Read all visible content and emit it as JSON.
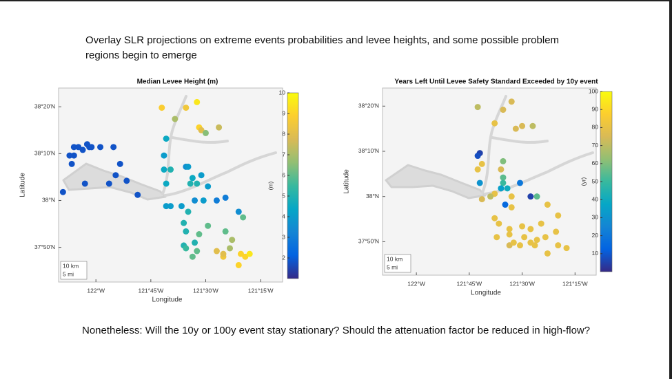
{
  "slide": {
    "title_lines": [
      "Overlay SLR projections on extreme events probabilities and levee heights, and some possible problem",
      "regions begin to emerge"
    ],
    "footer": "Nonetheless:  Will the 10y or 100y event stay stationary?  Should the attenuation factor be reduced in high-flow?"
  },
  "chart_data": [
    {
      "type": "scatter",
      "title": "Median Levee Height (m)",
      "x_label": "Longitude",
      "y_label": "Latitude",
      "xlim": [
        -122.17,
        -121.15
      ],
      "ylim": [
        37.71,
        38.4
      ],
      "xticks": [
        {
          "value": -122,
          "label": "122°W"
        },
        {
          "value": -121.75,
          "label": "121°45'W"
        },
        {
          "value": -121.5,
          "label": "121°30'W"
        },
        {
          "value": -121.25,
          "label": "121°15'W"
        }
      ],
      "yticks": [
        {
          "value": 38.3333,
          "label": "38°20'N"
        },
        {
          "value": 38.1667,
          "label": "38°10'N"
        },
        {
          "value": 38,
          "label": "38°N"
        },
        {
          "value": 37.8333,
          "label": "37°50'N"
        }
      ],
      "x": [
        -122.1,
        -122.08,
        -122.06,
        -122.04,
        -122.03,
        -122.02,
        -121.98,
        -121.92,
        -122.12,
        -122.1,
        -122.11,
        -121.89,
        -121.91,
        -122.05,
        -121.94,
        -121.86,
        -121.81,
        -122.15,
        -121.7,
        -121.64,
        -121.59,
        -121.54,
        -121.68,
        -121.53,
        -121.52,
        -121.5,
        -121.44,
        -121.69,
        -121.69,
        -121.68,
        -121.66,
        -121.59,
        -121.58,
        -121.56,
        -121.57,
        -121.54,
        -121.52,
        -121.49,
        -121.51,
        -121.45,
        -121.41,
        -121.55,
        -121.61,
        -121.66,
        -121.68,
        -121.58,
        -121.35,
        -121.33,
        -121.6,
        -121.59,
        -121.53,
        -121.55,
        -121.6,
        -121.49,
        -121.41,
        -121.38,
        -121.45,
        -121.42,
        -121.42,
        -121.39,
        -121.35,
        -121.32,
        -121.3,
        -121.34,
        -121.54,
        -121.56,
        -121.59
      ],
      "y": [
        38.19,
        38.19,
        38.18,
        38.2,
        38.19,
        38.19,
        38.19,
        38.19,
        38.16,
        38.16,
        38.13,
        38.13,
        38.09,
        38.06,
        38.06,
        38.07,
        38.02,
        38.03,
        38.33,
        38.29,
        38.33,
        38.35,
        38.22,
        38.26,
        38.25,
        38.24,
        38.26,
        38.16,
        38.11,
        38.06,
        38.11,
        38.12,
        38.12,
        38.08,
        38.06,
        38.06,
        38.09,
        38.05,
        38.0,
        38.0,
        38.01,
        38.0,
        37.98,
        37.98,
        37.98,
        37.96,
        37.96,
        37.94,
        37.92,
        37.89,
        37.88,
        37.85,
        37.84,
        37.91,
        37.89,
        37.86,
        37.82,
        37.8,
        37.81,
        37.83,
        37.77,
        37.8,
        37.81,
        37.81,
        37.82,
        37.8,
        37.83
      ],
      "values": [
        1.8,
        1.8,
        1.8,
        1.8,
        1.8,
        1.8,
        1.8,
        1.8,
        1.8,
        1.8,
        1.8,
        1.8,
        1.8,
        1.8,
        1.8,
        1.8,
        1.8,
        1.8,
        8.8,
        7,
        8.5,
        9.5,
        4.5,
        9,
        8,
        6.5,
        7.5,
        4,
        4.5,
        4.5,
        5,
        3.5,
        4,
        4.5,
        5,
        5,
        4,
        4,
        4,
        3,
        3,
        3.5,
        4,
        4,
        4,
        5,
        3.5,
        6,
        5,
        5,
        6,
        5,
        5,
        6,
        6,
        7,
        8,
        8.5,
        8,
        7,
        9,
        9,
        9.5,
        9,
        6,
        6,
        5.5
      ],
      "colorbar": {
        "label": "(m)",
        "lim": [
          1,
          10
        ],
        "ticks": [
          2,
          3,
          4,
          5,
          6,
          7,
          8,
          9,
          10
        ]
      },
      "scale_bar": [
        "10 km",
        "5 mi"
      ]
    },
    {
      "type": "scatter",
      "title": "Years Left Until Levee Safety Standard Exceeded by 10y event",
      "x_label": "Longitude",
      "y_label": "Latitude",
      "xlim": [
        -122.16,
        -121.15
      ],
      "ylim": [
        37.71,
        38.4
      ],
      "xticks": [
        {
          "value": -122,
          "label": "122°W"
        },
        {
          "value": -121.75,
          "label": "121°45'W"
        },
        {
          "value": -121.5,
          "label": "121°30'W"
        },
        {
          "value": -121.25,
          "label": "121°15'W"
        }
      ],
      "yticks": [
        {
          "value": 38.3333,
          "label": "38°20'N"
        },
        {
          "value": 38.1667,
          "label": "38°10'N"
        },
        {
          "value": 38,
          "label": "38°N"
        },
        {
          "value": 37.8333,
          "label": "37°50'N"
        }
      ],
      "x": [
        -121.71,
        -121.59,
        -121.55,
        -121.63,
        -121.53,
        -121.5,
        -121.45,
        -121.7,
        -121.71,
        -121.69,
        -121.71,
        -121.59,
        -121.6,
        -121.59,
        -121.59,
        -121.7,
        -121.6,
        -121.57,
        -121.51,
        -121.46,
        -121.43,
        -121.55,
        -121.58,
        -121.63,
        -121.65,
        -121.69,
        -121.55,
        -121.38,
        -121.33,
        -121.63,
        -121.61,
        -121.56,
        -121.5,
        -121.46,
        -121.41,
        -121.62,
        -121.56,
        -121.49,
        -121.46,
        -121.44,
        -121.39,
        -121.43,
        -121.34,
        -121.33,
        -121.29,
        -121.51,
        -121.56,
        -121.54,
        -121.38
      ],
      "y": [
        38.33,
        38.32,
        38.35,
        38.27,
        38.25,
        38.26,
        38.26,
        38.16,
        38.15,
        38.12,
        38.1,
        38.13,
        38.1,
        38.07,
        38.05,
        38.05,
        38.03,
        38.03,
        38.05,
        38.0,
        38.0,
        38.0,
        37.97,
        38.01,
        38.0,
        37.99,
        37.96,
        37.97,
        37.93,
        37.92,
        37.9,
        37.88,
        37.89,
        37.88,
        37.9,
        37.85,
        37.86,
        37.85,
        37.83,
        37.82,
        37.85,
        37.84,
        37.87,
        37.82,
        37.81,
        37.82,
        37.82,
        37.83,
        37.79
      ],
      "values": [
        70,
        75,
        75,
        80,
        75,
        75,
        70,
        5,
        8,
        80,
        80,
        60,
        75,
        55,
        50,
        30,
        35,
        40,
        20,
        5,
        55,
        80,
        15,
        80,
        70,
        75,
        80,
        80,
        80,
        80,
        80,
        80,
        80,
        80,
        80,
        80,
        80,
        80,
        80,
        80,
        80,
        80,
        80,
        80,
        80,
        80,
        75,
        80,
        80
      ],
      "colorbar": {
        "label": "(yr)",
        "lim": [
          0,
          100
        ],
        "ticks": [
          10,
          20,
          30,
          40,
          50,
          60,
          70,
          80,
          90,
          100
        ]
      },
      "scale_bar": [
        "10 km",
        "5 mi"
      ]
    }
  ]
}
